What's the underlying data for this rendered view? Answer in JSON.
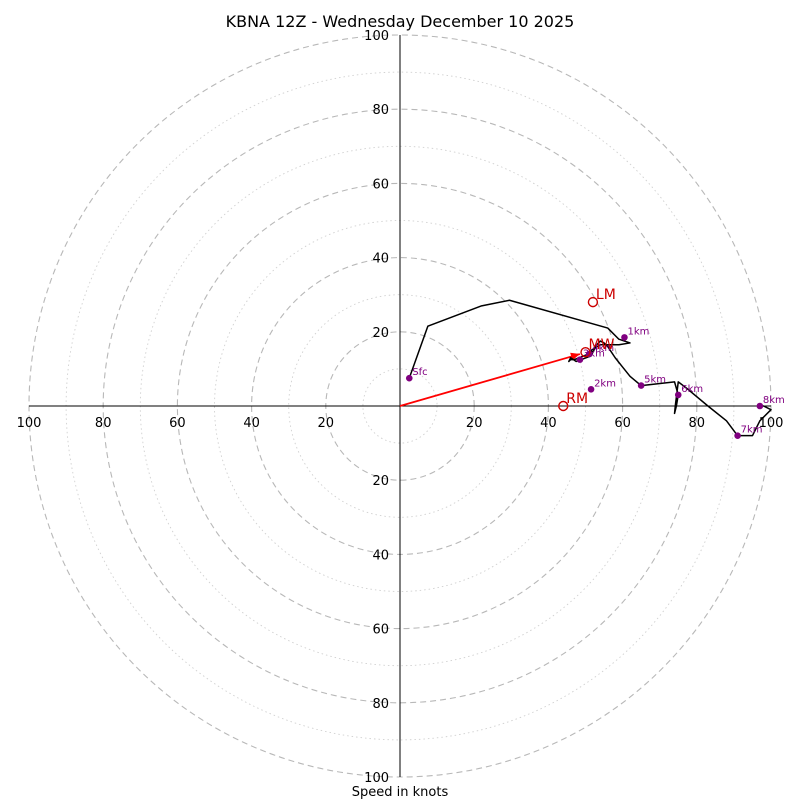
{
  "chart_data": {
    "type": "line",
    "subtype": "hodograph",
    "title": "KBNA 12Z - Wednesday December 10 2025",
    "xlabel": "Speed in knots",
    "ylabel": "",
    "xlim": [
      -100,
      100
    ],
    "ylim": [
      -100,
      100
    ],
    "ring_major_step": 20,
    "ring_minor_step": 10,
    "ring_max": 100,
    "tick_labels_right": [
      "20",
      "40",
      "60",
      "80",
      "100"
    ],
    "tick_labels_left": [
      "100",
      "80",
      "60",
      "40",
      "20"
    ],
    "tick_labels_up": [
      "20",
      "40",
      "60",
      "80",
      "100"
    ],
    "tick_labels_down": [
      "20",
      "40",
      "60",
      "80",
      "100"
    ],
    "trace": {
      "x": [
        2.5,
        7.5,
        22,
        29.5,
        56,
        59,
        62,
        59,
        54,
        51.5,
        52,
        49.5,
        47,
        46,
        45.5,
        46,
        47.5,
        51.5,
        53,
        54,
        55,
        55.5,
        56,
        57,
        58,
        60,
        62,
        65,
        74,
        75,
        74.5,
        74,
        74.2,
        75,
        77,
        83,
        88,
        91,
        95,
        97,
        100,
        98,
        97
      ],
      "y": [
        7.5,
        21.5,
        27,
        28.5,
        21,
        18,
        17,
        16.5,
        16.5,
        15,
        14.5,
        13.5,
        12.5,
        12.5,
        12,
        13,
        12,
        13.5,
        16.5,
        17.5,
        17,
        16.5,
        16,
        14.5,
        13,
        10.5,
        8,
        5.5,
        6.5,
        3,
        0,
        -2,
        0,
        6.5,
        5,
        0,
        -4,
        -8,
        -8,
        -4,
        -1,
        0,
        0
      ]
    },
    "height_markers": [
      {
        "label": "Sfc",
        "x": 2.5,
        "y": 7.5
      },
      {
        "label": "1km",
        "x": 60.5,
        "y": 18.5
      },
      {
        "label": "2km",
        "x": 51.5,
        "y": 4.5
      },
      {
        "label": "3km",
        "x": 48.5,
        "y": 12.5
      },
      {
        "label": "4km",
        "x": 51,
        "y": 14
      },
      {
        "label": "5km",
        "x": 65,
        "y": 5.5
      },
      {
        "label": "6km",
        "x": 75,
        "y": 3
      },
      {
        "label": "7km",
        "x": 91,
        "y": -8
      },
      {
        "label": "8km",
        "x": 97,
        "y": 0
      }
    ],
    "storm_motion": [
      {
        "label": "LM",
        "x": 52,
        "y": 28
      },
      {
        "label": "MW",
        "x": 50,
        "y": 14.5
      },
      {
        "label": "RM",
        "x": 44,
        "y": 0
      }
    ],
    "shear_vector": {
      "x0": 0,
      "y0": 0,
      "x1": 48.5,
      "y1": 14
    },
    "colors": {
      "trace": "#000000",
      "marker": "#800080",
      "storm_motion": "#cc0000",
      "shear_vector": "#ff0000",
      "ring": "#b8b8b8"
    }
  }
}
